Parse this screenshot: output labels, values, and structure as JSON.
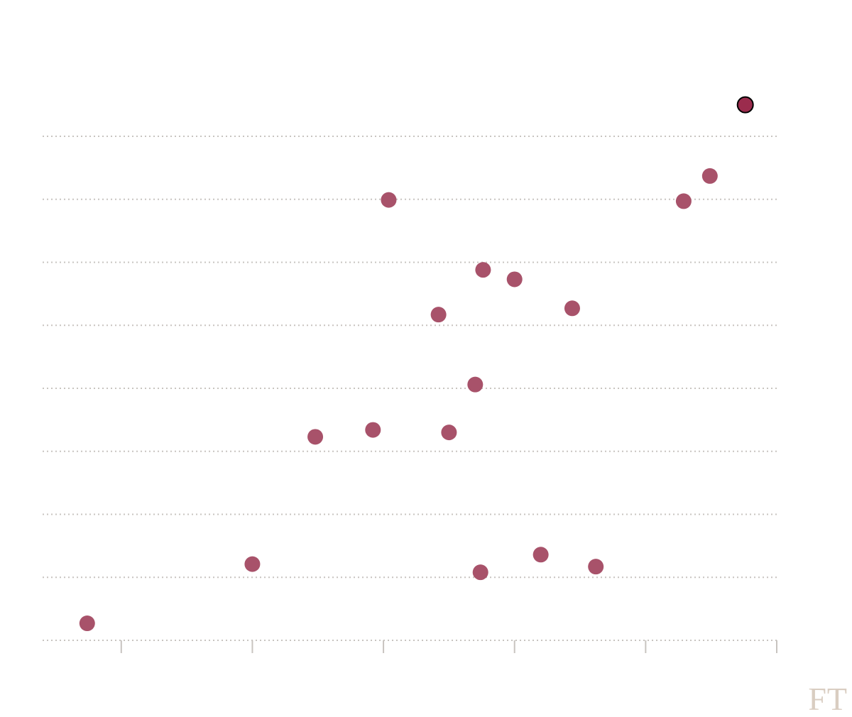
{
  "chart_data": {
    "type": "scatter",
    "title": "",
    "xlabel": "",
    "ylabel": "",
    "xlim": [
      0.4,
      6.0
    ],
    "ylim": [
      0,
      8
    ],
    "x_ticks": [
      1,
      2,
      3,
      4,
      5,
      6
    ],
    "y_gridlines": [
      0,
      1,
      2,
      3,
      4,
      5,
      6,
      7,
      8
    ],
    "grid": true,
    "points": [
      {
        "x": 0.74,
        "y": 0.27,
        "highlight": false
      },
      {
        "x": 2.0,
        "y": 1.21,
        "highlight": false
      },
      {
        "x": 2.48,
        "y": 3.23,
        "highlight": false
      },
      {
        "x": 2.92,
        "y": 3.34,
        "highlight": false
      },
      {
        "x": 3.04,
        "y": 6.99,
        "highlight": false
      },
      {
        "x": 3.42,
        "y": 5.17,
        "highlight": false
      },
      {
        "x": 3.5,
        "y": 3.3,
        "highlight": false
      },
      {
        "x": 3.7,
        "y": 4.06,
        "highlight": false
      },
      {
        "x": 3.76,
        "y": 5.88,
        "highlight": false
      },
      {
        "x": 3.74,
        "y": 1.08,
        "highlight": false
      },
      {
        "x": 4.0,
        "y": 5.73,
        "highlight": false
      },
      {
        "x": 4.2,
        "y": 1.36,
        "highlight": false
      },
      {
        "x": 4.44,
        "y": 5.27,
        "highlight": false
      },
      {
        "x": 4.62,
        "y": 1.17,
        "highlight": false
      },
      {
        "x": 5.29,
        "y": 6.97,
        "highlight": false
      },
      {
        "x": 5.49,
        "y": 7.37,
        "highlight": false
      },
      {
        "x": 5.76,
        "y": 8.5,
        "highlight": true
      }
    ]
  },
  "colors": {
    "point": "#a8526a",
    "highlight": "#9b2c4d",
    "gridline": "#c8c4c0",
    "logo": "#d9cdc1"
  },
  "branding": {
    "logo_text": "FT"
  }
}
